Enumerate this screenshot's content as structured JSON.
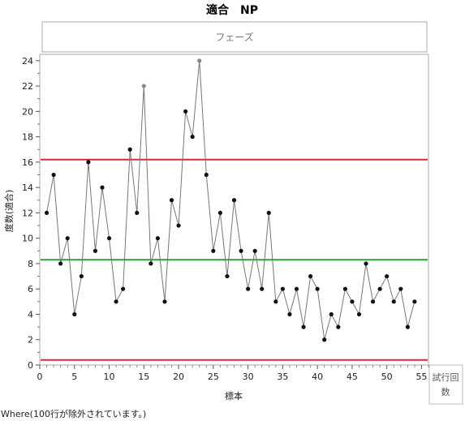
{
  "title": "適合　NP",
  "phase_label": "フェーズ",
  "corner_button_lines": [
    "試行回",
    "数"
  ],
  "where_note": "Where(100行が除外されています。)",
  "chart_data": {
    "type": "line",
    "xlabel": "標本",
    "ylabel": "度数(適合)",
    "xlim": [
      0,
      56
    ],
    "ylim": [
      0,
      24.5
    ],
    "x_ticks": [
      0,
      5,
      10,
      15,
      20,
      25,
      30,
      35,
      40,
      45,
      50,
      55
    ],
    "y_ticks": [
      0,
      2,
      4,
      6,
      8,
      10,
      12,
      14,
      16,
      18,
      20,
      22,
      24
    ],
    "control_limits": {
      "ucl": 16.2,
      "center": 8.3,
      "lcl": 0.4
    },
    "colors": {
      "limit": "#d62a3c",
      "center": "#2aa038",
      "line": "#777777",
      "point": "#111111",
      "out_of_control_point": "#888888"
    },
    "series": [
      {
        "x": [
          1,
          2,
          3,
          4,
          5,
          6,
          7,
          8,
          9,
          10,
          11,
          12,
          13,
          14,
          15,
          16,
          17,
          18,
          19,
          20,
          21,
          22,
          23,
          24,
          25,
          26,
          27,
          28,
          29,
          30,
          31,
          32,
          33,
          34,
          35,
          36,
          37,
          38,
          39,
          40,
          41,
          42,
          43,
          44,
          45,
          46,
          47,
          48,
          49,
          50,
          51,
          52,
          53,
          54
        ],
        "values": [
          12,
          15,
          8,
          10,
          4,
          7,
          16,
          9,
          14,
          10,
          5,
          6,
          17,
          12,
          22,
          8,
          10,
          5,
          13,
          11,
          20,
          18,
          24,
          15,
          9,
          12,
          7,
          13,
          9,
          6,
          9,
          6,
          12,
          5,
          6,
          4,
          6,
          3,
          7,
          6,
          2,
          4,
          3,
          6,
          5,
          4,
          8,
          5,
          6,
          7,
          5,
          6,
          3,
          5
        ],
        "out_of_control": [
          15,
          23
        ]
      }
    ]
  }
}
